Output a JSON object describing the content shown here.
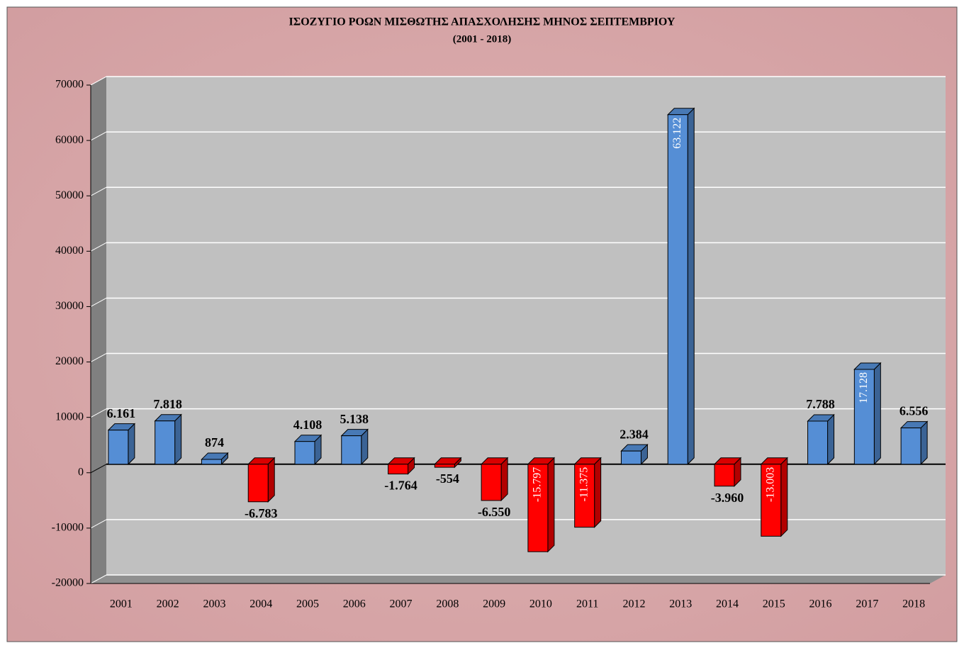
{
  "chart_data": {
    "type": "bar",
    "title": "ΙΣΟΖΥΓΙΟ ΡΟΩΝ ΜΙΣΘΩΤΗΣ ΑΠΑΣΧΟΛΗΣΗΣ ΜΗΝΟΣ  ΣΕΠΤΕΜΒΡΙΟΥ",
    "subtitle": "(2001 - 2018)",
    "categories": [
      "2001",
      "2002",
      "2003",
      "2004",
      "2005",
      "2006",
      "2007",
      "2008",
      "2009",
      "2010",
      "2011",
      "2012",
      "2013",
      "2014",
      "2015",
      "2016",
      "2017",
      "2018"
    ],
    "values": [
      6161,
      7818,
      874,
      -6783,
      4108,
      5138,
      -1764,
      -554,
      -6550,
      -15797,
      -11375,
      2384,
      63122,
      -3960,
      -13003,
      7788,
      17128,
      6556
    ],
    "value_labels": [
      "6.161",
      "7.818",
      "874",
      "-6.783",
      "4.108",
      "5.138",
      "-1.764",
      "-554",
      "-6.550",
      "-15.797",
      "-11.375",
      "2.384",
      "63.122",
      "-3.960",
      "-13.003",
      "7.788",
      "17.128",
      "6.556"
    ],
    "color": "#558ed5",
    "negative_color": "#ff0000",
    "ylim": [
      -20000,
      70000
    ],
    "yticks": [
      -20000,
      -10000,
      0,
      10000,
      20000,
      30000,
      40000,
      50000,
      60000,
      70000
    ],
    "grid": true
  }
}
